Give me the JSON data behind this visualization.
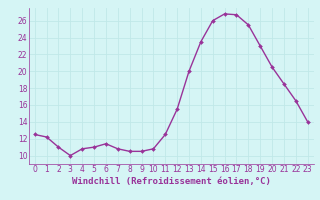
{
  "x": [
    0,
    1,
    2,
    3,
    4,
    5,
    6,
    7,
    8,
    9,
    10,
    11,
    12,
    13,
    14,
    15,
    16,
    17,
    18,
    19,
    20,
    21,
    22,
    23
  ],
  "y": [
    12.5,
    12.2,
    11.0,
    10.0,
    10.8,
    11.0,
    11.4,
    10.8,
    10.5,
    10.5,
    10.8,
    12.5,
    15.5,
    20.0,
    23.5,
    26.0,
    26.8,
    26.7,
    25.5,
    23.0,
    20.5,
    18.5,
    16.5,
    14.0
  ],
  "line_color": "#993399",
  "marker": "D",
  "marker_size": 2.0,
  "linewidth": 1.0,
  "xlabel": "Windchill (Refroidissement éolien,°C)",
  "xlabel_fontsize": 6.5,
  "ylabel_ticks": [
    10,
    12,
    14,
    16,
    18,
    20,
    22,
    24,
    26
  ],
  "ylim": [
    9.0,
    27.5
  ],
  "xlim": [
    -0.5,
    23.5
  ],
  "xtick_labels": [
    "0",
    "1",
    "2",
    "3",
    "4",
    "5",
    "6",
    "7",
    "8",
    "9",
    "10",
    "11",
    "12",
    "13",
    "14",
    "15",
    "16",
    "17",
    "18",
    "19",
    "20",
    "21",
    "22",
    "23"
  ],
  "bg_color": "#d5f5f5",
  "grid_color": "#c0e8e8",
  "tick_color": "#993399",
  "label_color": "#993399",
  "tick_fontsize": 5.5
}
